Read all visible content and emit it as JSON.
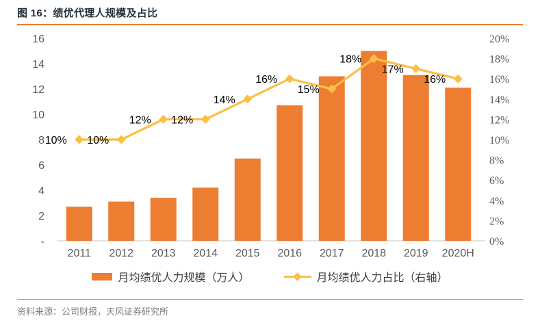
{
  "footer": {
    "source_note": "资料来源：公司财报，天风证券研究所"
  },
  "colors": {
    "bar": "#ED7D31",
    "line": "#FBBF45",
    "accent_rule": "#ED7D31",
    "title_text": "#22303C",
    "axis_text": "#595959",
    "data_label_text": "#000000",
    "legend_text": "#3F3F3F",
    "source_text": "#7F7F7F",
    "axis_line": "#D9D9D9"
  },
  "chart_data": {
    "type": "combo-bar-line",
    "title": "图 16：绩优代理人规模及占比",
    "categories": [
      "2011",
      "2012",
      "2013",
      "2014",
      "2015",
      "2016",
      "2017",
      "2018",
      "2019",
      "2020H"
    ],
    "series": [
      {
        "name": "月均绩优人力规模（万人）",
        "chart": "bar",
        "axis": "left",
        "color": "#ED7D31",
        "values": [
          2.7,
          3.1,
          3.4,
          4.2,
          6.5,
          10.7,
          13.0,
          15.0,
          13.1,
          12.1
        ]
      },
      {
        "name": "月均绩优人力占比（右轴）",
        "chart": "line",
        "axis": "right",
        "color": "#FBBF45",
        "values": [
          10,
          10,
          12,
          12,
          14,
          16,
          15,
          18,
          17,
          16
        ],
        "point_labels": [
          "10%",
          "10%",
          "12%",
          "12%",
          "14%",
          "16%",
          "15%",
          "18%",
          "17%",
          "16%"
        ]
      }
    ],
    "left_axis": {
      "min": 0,
      "max": 16,
      "step": 2,
      "tick_labels": [
        "-",
        "2",
        "4",
        "6",
        "8",
        "10",
        "12",
        "14",
        "16"
      ]
    },
    "right_axis": {
      "min": 0,
      "max": 20,
      "step": 2,
      "tick_labels": [
        "0%",
        "2%",
        "4%",
        "6%",
        "8%",
        "10%",
        "12%",
        "14%",
        "16%",
        "18%",
        "20%"
      ]
    },
    "grid": false,
    "legend_position": "bottom",
    "data_label_offset": [
      -18,
      6
    ]
  }
}
